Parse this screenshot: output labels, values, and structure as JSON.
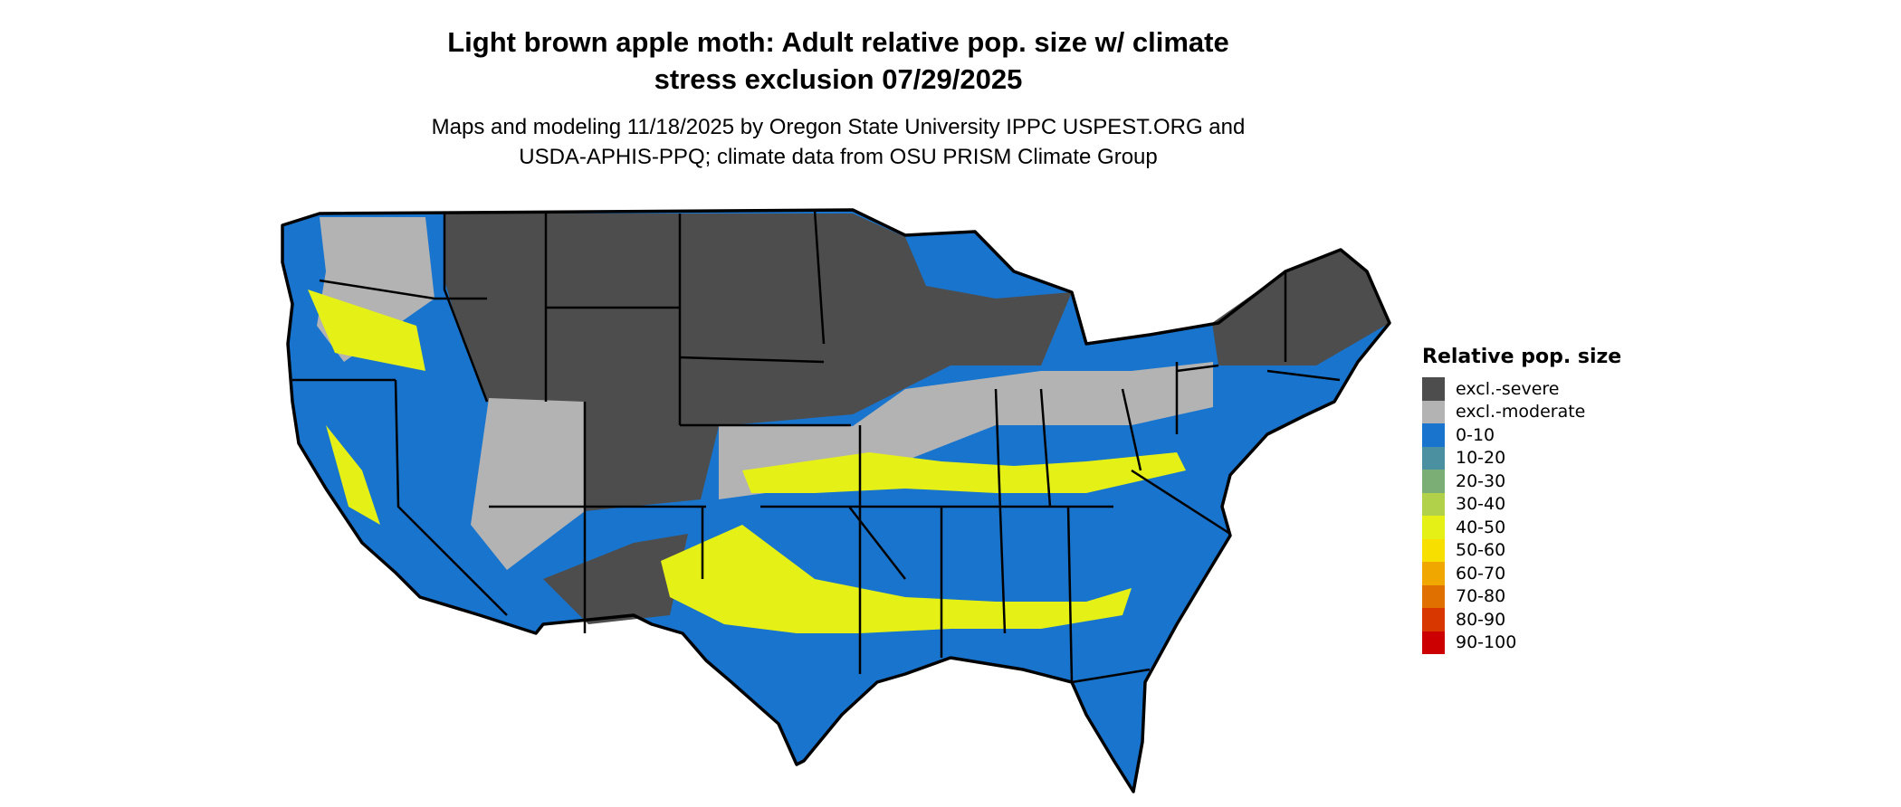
{
  "title": {
    "line1": "Light brown apple moth: Adult relative pop. size w/ climate",
    "line2": "stress exclusion 07/29/2025"
  },
  "subtitle": {
    "line1": "Maps and modeling 11/18/2025 by Oregon State University IPPC USPEST.ORG and",
    "line2": "USDA-APHIS-PPQ; climate data from OSU PRISM Climate Group"
  },
  "legend": {
    "title": "Relative pop. size",
    "items": [
      {
        "label": "excl.-severe",
        "color": "#4d4d4d"
      },
      {
        "label": "excl.-moderate",
        "color": "#b3b3b3"
      },
      {
        "label": "0-10",
        "color": "#1874cd"
      },
      {
        "label": "10-20",
        "color": "#4a90a0"
      },
      {
        "label": "20-30",
        "color": "#7bae74"
      },
      {
        "label": "30-40",
        "color": "#b2d14a"
      },
      {
        "label": "40-50",
        "color": "#e5f016"
      },
      {
        "label": "50-60",
        "color": "#f7e000"
      },
      {
        "label": "60-70",
        "color": "#f0a800"
      },
      {
        "label": "70-80",
        "color": "#e07000"
      },
      {
        "label": "80-90",
        "color": "#d83800"
      },
      {
        "label": "90-100",
        "color": "#cd0000"
      }
    ]
  },
  "map": {
    "region": "Contiguous United States",
    "border_color": "#000000"
  }
}
